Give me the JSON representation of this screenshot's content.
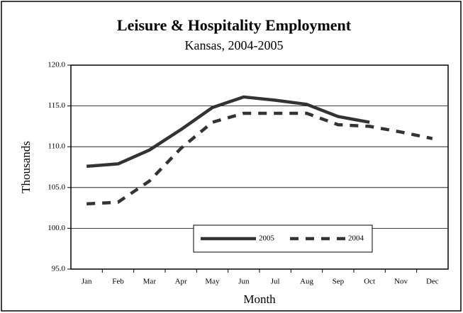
{
  "chart_data": {
    "type": "line",
    "title": "Leisure & Hospitality Employment",
    "subtitle": "Kansas, 2004-2005",
    "x_label": "Month",
    "y_label": "Thousands",
    "categories": [
      "Jan",
      "Feb",
      "Mar",
      "Apr",
      "May",
      "Jun",
      "Jul",
      "Aug",
      "Sep",
      "Oct",
      "Nov",
      "Dec"
    ],
    "series": [
      {
        "name": "2005",
        "color": "#333333",
        "line_style": "solid",
        "values": [
          107.6,
          107.9,
          109.6,
          112.1,
          114.8,
          116.1,
          115.7,
          115.2,
          113.7,
          113.0,
          null,
          null
        ]
      },
      {
        "name": "2004",
        "color": "#333333",
        "line_style": "dashed",
        "values": [
          103.0,
          103.2,
          105.8,
          109.8,
          113.0,
          114.1,
          114.1,
          114.1,
          112.7,
          112.5,
          111.8,
          111.0
        ]
      }
    ],
    "ylim": [
      95,
      120
    ],
    "yticks": [
      {
        "value": 95,
        "label": "95.0"
      },
      {
        "value": 100,
        "label": "100.0"
      },
      {
        "value": 105,
        "label": "105.0"
      },
      {
        "value": 110,
        "label": "110.0"
      },
      {
        "value": 115,
        "label": "115.0"
      },
      {
        "value": 120,
        "label": "120.0"
      }
    ],
    "grid": true,
    "legend": "bottom"
  }
}
